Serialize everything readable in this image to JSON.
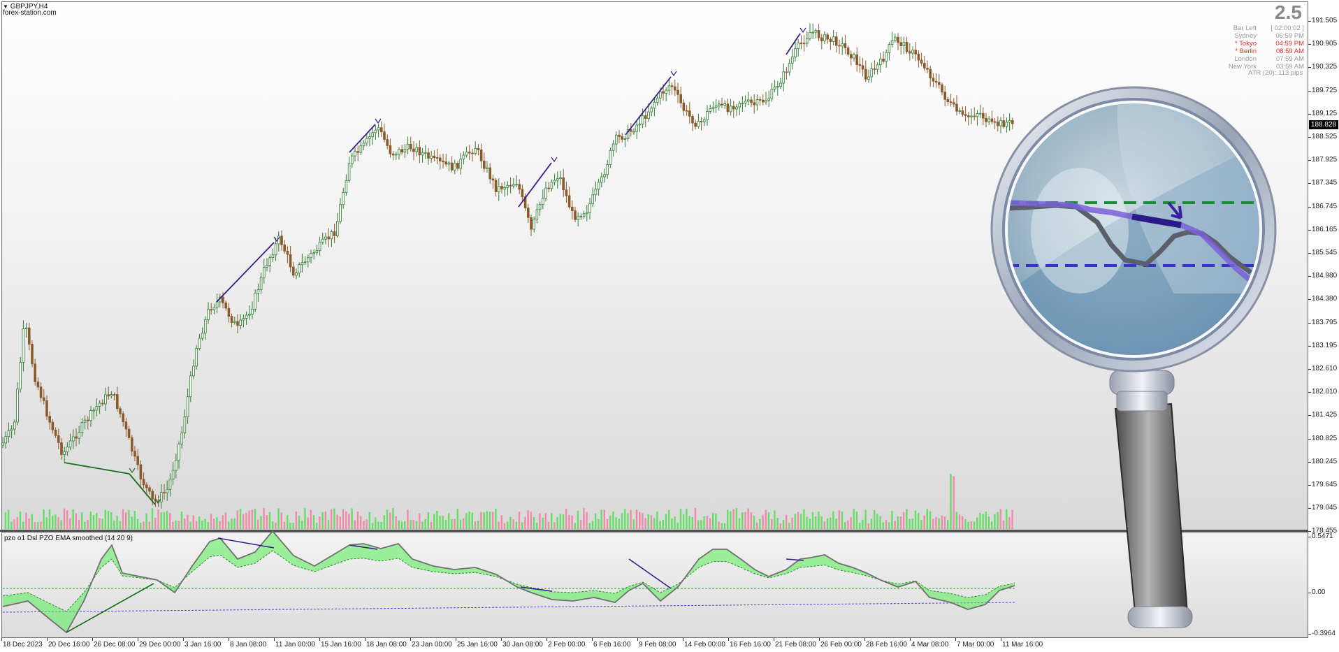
{
  "chart": {
    "symbol_label": "GBPJPY,H4",
    "watermark": "forex-station.com",
    "dropdown_icon": "triangle-down-icon"
  },
  "info": {
    "spread": "2.5",
    "rows": [
      {
        "label": "Bar Left",
        "value": "[ 02:00:02 ]",
        "highlight": false
      },
      {
        "label": "Sydney",
        "value": "06:59 PM",
        "highlight": false
      },
      {
        "label": "* Tokyo",
        "value": "04:59 PM",
        "highlight": true
      },
      {
        "label": "* Berlin",
        "value": "08:59 AM",
        "highlight": true
      },
      {
        "label": "London",
        "value": "07:59 AM",
        "highlight": false
      },
      {
        "label": "New York",
        "value": "03:59 AM",
        "highlight": false
      }
    ],
    "atr": "ATR (20): 113 pips"
  },
  "price_axis": {
    "labels": [
      "191.505",
      "190.905",
      "190.325",
      "189.725",
      "189.125",
      "188.525",
      "187.925",
      "187.345",
      "186.745",
      "186.165",
      "185.545",
      "184.980",
      "184.380",
      "183.795",
      "183.195",
      "182.610",
      "182.010",
      "181.425",
      "180.825",
      "180.245",
      "179.645",
      "179.045",
      "178.455"
    ],
    "current_price": "188.828"
  },
  "indicator": {
    "title": "pzo o1 Dsl PZO EMA smoothed (14 20 9)",
    "axis_labels": [
      "0.5471",
      "0.00",
      "-0.3964"
    ]
  },
  "time_axis": {
    "labels": [
      "18 Dec 2023",
      "20 Dec 16:00",
      "26 Dec 08:00",
      "29 Dec 00:00",
      "3 Jan 16:00",
      "8 Jan 08:00",
      "11 Jan 00:00",
      "15 Jan 16:00",
      "18 Jan 08:00",
      "23 Jan 00:00",
      "25 Jan 16:00",
      "30 Jan 08:00",
      "2 Feb 00:00",
      "6 Feb 16:00",
      "9 Feb 08:00",
      "14 Feb 00:00",
      "16 Feb 16:00",
      "21 Feb 08:00",
      "26 Feb 00:00",
      "28 Feb 16:00",
      "4 Mar 08:00",
      "7 Mar 00:00",
      "11 Mar 16:00"
    ]
  },
  "colors": {
    "bull_candle": "#2e7d32",
    "bear_candle": "#8b5a2b",
    "vol_up": "#66dd66",
    "vol_down": "#f08aa8",
    "divergence_bear": "#3a1a8a",
    "divergence_bull": "#1a6e1a",
    "osc_line": "#707070",
    "osc_fill_up": "#55ee55",
    "osc_fill_down": "#a070e0",
    "level_up": "#2a9d2a",
    "level_down": "#5a40e0"
  },
  "magnifier": {
    "icon": "magnifying-glass-icon"
  }
}
